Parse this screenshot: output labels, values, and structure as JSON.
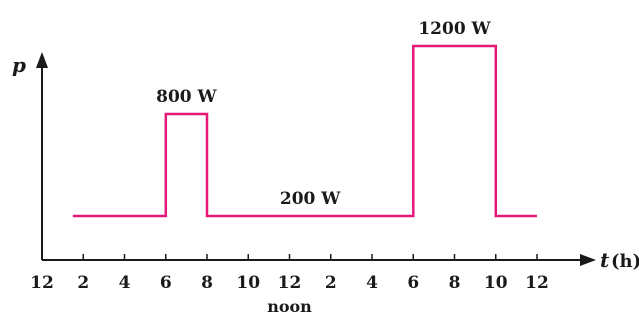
{
  "chart_data": {
    "type": "line",
    "step": true,
    "x_axis": {
      "title": "t",
      "unit": "(h)",
      "range": [
        0,
        24
      ],
      "ticks": [
        0,
        2,
        4,
        6,
        8,
        10,
        12,
        14,
        16,
        18,
        20,
        22,
        24
      ],
      "tick_labels": [
        "12",
        "2",
        "4",
        "6",
        "8",
        "10",
        "12",
        "2",
        "4",
        "6",
        "8",
        "10",
        "12"
      ],
      "noon_label": "noon",
      "noon_at": 12
    },
    "y_axis": {
      "title": "p"
    },
    "series": [
      {
        "color": "#e8187a",
        "points": [
          {
            "x": 1.5,
            "y": 200
          },
          {
            "x": 6,
            "y": 200
          },
          {
            "x": 6,
            "y": 800
          },
          {
            "x": 8,
            "y": 800
          },
          {
            "x": 8,
            "y": 200
          },
          {
            "x": 18,
            "y": 200
          },
          {
            "x": 18,
            "y": 1200
          },
          {
            "x": 22,
            "y": 1200
          },
          {
            "x": 22,
            "y": 200
          },
          {
            "x": 24,
            "y": 200
          }
        ]
      }
    ],
    "annotations": [
      {
        "text": "800 W",
        "x": 7,
        "y": 800
      },
      {
        "text": "200 W",
        "x": 13,
        "y": 200
      },
      {
        "text": "1200 W",
        "x": 20,
        "y": 1200
      }
    ],
    "grid": false,
    "legend": "none"
  }
}
